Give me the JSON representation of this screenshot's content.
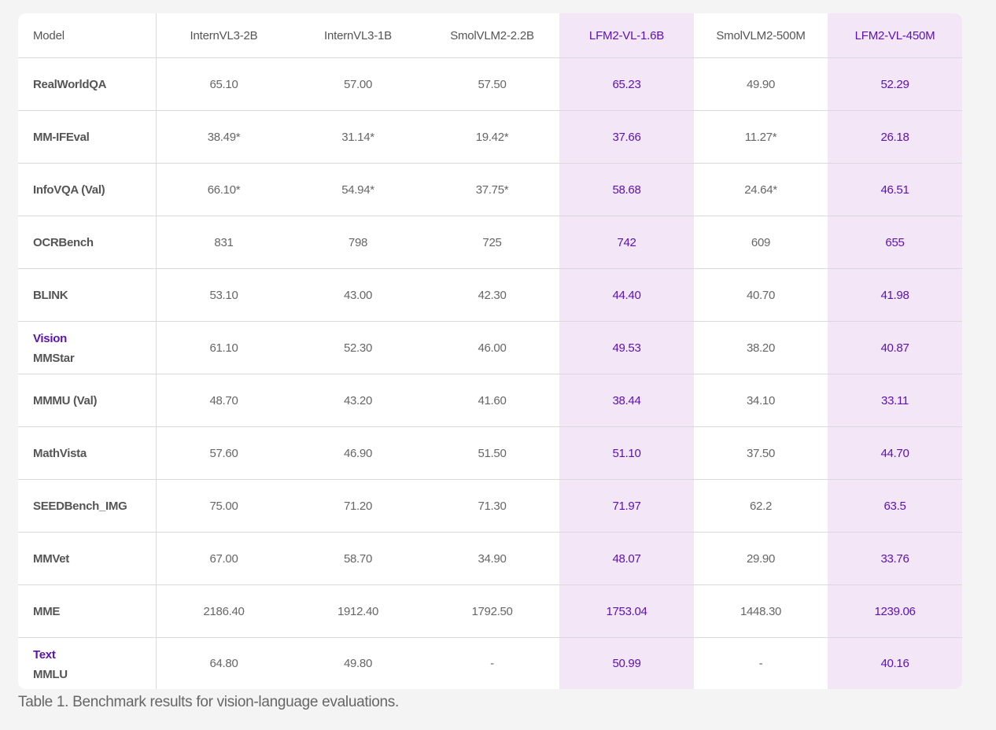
{
  "table": {
    "header": {
      "model": "Model",
      "columns": [
        {
          "name": "InternVL3-2B",
          "highlight": false
        },
        {
          "name": "InternVL3-1B",
          "highlight": false
        },
        {
          "name": "SmolVLM2-2.2B",
          "highlight": false
        },
        {
          "name": "LFM2-VL-1.6B",
          "highlight": true
        },
        {
          "name": "SmolVLM2-500M",
          "highlight": false
        },
        {
          "name": "LFM2-VL-450M",
          "highlight": true
        }
      ]
    },
    "rows": [
      {
        "group": "",
        "benchmark": "RealWorldQA",
        "values": [
          "65.10",
          "57.00",
          "57.50",
          "65.23",
          "49.90",
          "52.29"
        ]
      },
      {
        "group": "",
        "benchmark": "MM-IFEval",
        "values": [
          "38.49*",
          "31.14*",
          "19.42*",
          "37.66",
          "11.27*",
          "26.18"
        ]
      },
      {
        "group": "",
        "benchmark": "InfoVQA (Val)",
        "values": [
          "66.10*",
          "54.94*",
          "37.75*",
          "58.68",
          "24.64*",
          "46.51"
        ]
      },
      {
        "group": "",
        "benchmark": "OCRBench",
        "values": [
          "831",
          "798",
          "725",
          "742",
          "609",
          "655"
        ]
      },
      {
        "group": "",
        "benchmark": "BLINK",
        "values": [
          "53.10",
          "43.00",
          "42.30",
          "44.40",
          "40.70",
          "41.98"
        ]
      },
      {
        "group": "Vision",
        "benchmark": "MMStar",
        "values": [
          "61.10",
          "52.30",
          "46.00",
          "49.53",
          "38.20",
          "40.87"
        ]
      },
      {
        "group": "",
        "benchmark": "MMMU (Val)",
        "values": [
          "48.70",
          "43.20",
          "41.60",
          "38.44",
          "34.10",
          "33.11"
        ]
      },
      {
        "group": "",
        "benchmark": "MathVista",
        "values": [
          "57.60",
          "46.90",
          "51.50",
          "51.10",
          "37.50",
          "44.70"
        ]
      },
      {
        "group": "",
        "benchmark": "SEEDBench_IMG",
        "values": [
          "75.00",
          "71.20",
          "71.30",
          "71.97",
          "62.2",
          "63.5"
        ]
      },
      {
        "group": "",
        "benchmark": "MMVet",
        "values": [
          "67.00",
          "58.70",
          "34.90",
          "48.07",
          "29.90",
          "33.76"
        ]
      },
      {
        "group": "",
        "benchmark": "MME",
        "values": [
          "2186.40",
          "1912.40",
          "1792.50",
          "1753.04",
          "1448.30",
          "1239.06"
        ]
      },
      {
        "group": "Text",
        "benchmark": "MMLU",
        "values": [
          "64.80",
          "49.80",
          "-",
          "50.99",
          "-",
          "40.16"
        ]
      }
    ]
  },
  "caption": "Table 1. Benchmark results for vision-language evaluations.",
  "colors": {
    "highlight_bg": "#f3e6f6",
    "highlight_text": "#5a12b0",
    "page_bg": "#f4f4f4"
  }
}
